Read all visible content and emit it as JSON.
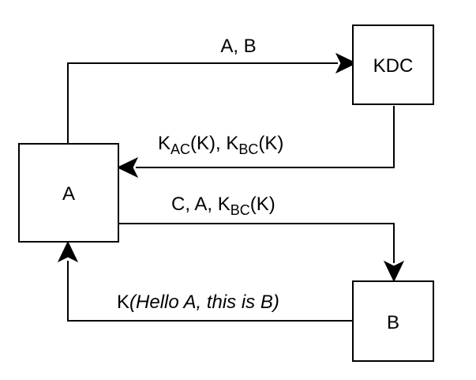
{
  "nodes": {
    "a": {
      "label": "A"
    },
    "kdc": {
      "label": "KDC"
    },
    "b": {
      "label": "B"
    }
  },
  "edges": {
    "a_to_kdc": {
      "text": "A, B"
    },
    "kdc_to_a": {
      "k1": "K",
      "sub1": "AC",
      "mid": "(K), ",
      "k2": "K",
      "sub2": "BC",
      "end": "(K)"
    },
    "a_to_b": {
      "prefix": "C, A, ",
      "k": "K",
      "sub": "BC",
      "end": "(K)"
    },
    "b_to_a": {
      "prefix": "K",
      "italic": "(Hello A, this is B)"
    }
  }
}
